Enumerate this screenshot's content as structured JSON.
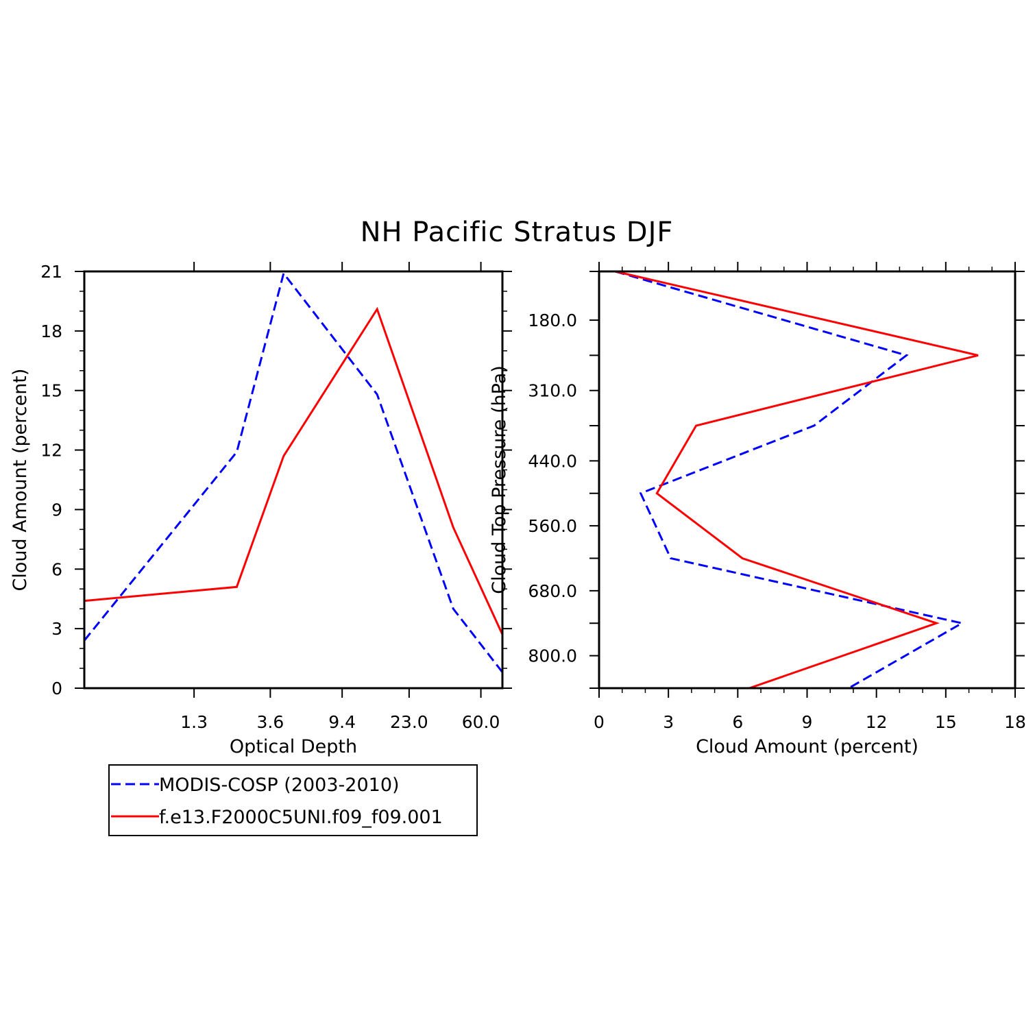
{
  "title": "NH Pacific Stratus DJF",
  "colors": {
    "modis": "#0000ff",
    "model": "#ff0000",
    "axes": "#000000"
  },
  "legend": {
    "entries": [
      {
        "label": "MODIS-COSP (2003-2010)",
        "color": "#0000ff",
        "style": "dashed"
      },
      {
        "label": "f.e13.F2000C5UNI.f09_f09.001",
        "color": "#ff0000",
        "style": "solid"
      }
    ]
  },
  "chart_data": [
    {
      "type": "line",
      "xlabel": "Optical Depth",
      "ylabel": "Cloud Amount (percent)",
      "x_tick_labels": [
        "1.3",
        "3.6",
        "9.4",
        "23.0",
        "60.0"
      ],
      "y_tick_labels": [
        "0",
        "3",
        "6",
        "9",
        "12",
        "15",
        "18",
        "21"
      ],
      "ylim": [
        0,
        21
      ],
      "grid": false,
      "x": [
        0.3,
        1.3,
        2.3,
        3.6,
        4.3,
        9.4,
        15.0,
        23.0,
        41.5,
        60.0,
        80.0
      ],
      "series": [
        {
          "name": "MODIS-COSP (2003-2010)",
          "color": "#0000ff",
          "style": "dashed",
          "x": [
            0.3,
            2.3,
            4.3,
            15.0,
            41.5,
            80.0
          ],
          "values": [
            2.4,
            11.9,
            20.9,
            14.8,
            4.0,
            0.8
          ]
        },
        {
          "name": "f.e13.F2000C5UNI.f09_f09.001",
          "color": "#ff0000",
          "style": "solid",
          "x": [
            0.3,
            2.3,
            4.3,
            15.0,
            41.5,
            80.0
          ],
          "values": [
            4.4,
            5.1,
            11.7,
            19.1,
            8.1,
            2.7
          ]
        }
      ]
    },
    {
      "type": "line",
      "xlabel": "Cloud Amount (percent)",
      "ylabel": "Cloud Top Pressure (hPa)",
      "x_tick_labels": [
        "0",
        "3",
        "6",
        "9",
        "12",
        "15",
        "18"
      ],
      "xlim": [
        0,
        18
      ],
      "y_tick_labels": [
        "180.0",
        "310.0",
        "440.0",
        "560.0",
        "680.0",
        "800.0"
      ],
      "y": [
        90,
        180,
        245,
        310,
        375,
        440,
        500,
        560,
        620,
        680,
        740,
        800,
        860
      ],
      "grid": false,
      "series": [
        {
          "name": "MODIS-COSP (2003-2010)",
          "color": "#0000ff",
          "style": "dashed",
          "x": [
            0.7,
            13.3,
            9.3,
            1.8,
            3.1,
            15.7,
            10.8
          ],
          "y": [
            90,
            245,
            375,
            500,
            620,
            740,
            860
          ]
        },
        {
          "name": "f.e13.F2000C5UNI.f09_f09.001",
          "color": "#ff0000",
          "style": "solid",
          "x": [
            0.7,
            16.4,
            4.2,
            2.5,
            6.2,
            14.6,
            6.5
          ],
          "y": [
            90,
            245,
            375,
            500,
            620,
            740,
            860
          ]
        }
      ]
    }
  ]
}
